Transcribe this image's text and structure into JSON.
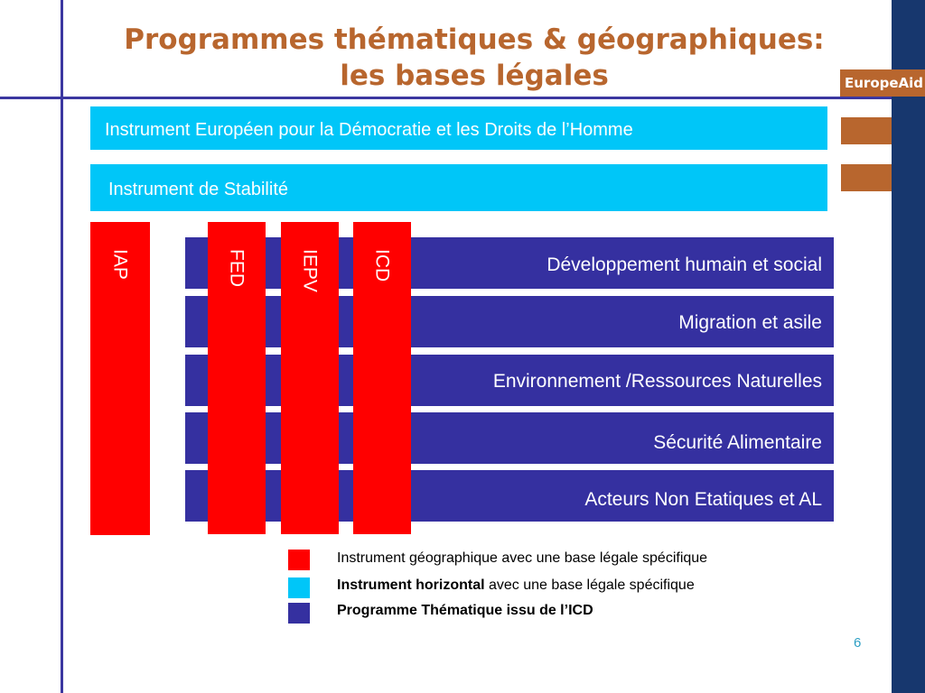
{
  "slide": {
    "title_line1": "Programmes thématiques & géographiques:",
    "title_line2": "les bases légales",
    "logo": "EuropeAid",
    "page_number": "6"
  },
  "horizontal_instruments": [
    "Instrument Européen pour la Démocratie et les Droits de l’Homme",
    "Instrument de Stabilité"
  ],
  "geographic_instruments": [
    "IAP",
    "FED",
    "IEPV",
    "ICD"
  ],
  "thematic_programmes": [
    "Développement humain et social",
    "Migration et asile",
    "Environnement /Ressources Naturelles",
    "Sécurité Alimentaire",
    "Acteurs Non Etatiques et AL"
  ],
  "legend": [
    {
      "text": "Instrument géographique avec une base légale spécifique",
      "color": "#ff0000"
    },
    {
      "bold": "Instrument horizontal",
      "text": " avec une base légale spécifique",
      "color": "#00c6f8"
    },
    {
      "bold": "Programme Thématique issu de l’ICD",
      "color": "#3530a0"
    }
  ],
  "colors": {
    "title": "#b8662e",
    "navy_band": "#17376e",
    "rule_lines": "#3b37a0",
    "horizontal_instrument": "#00c6f8",
    "geographic_instrument": "#ff0000",
    "thematic_programme": "#3530a0",
    "page_number": "#2e9fc4"
  }
}
